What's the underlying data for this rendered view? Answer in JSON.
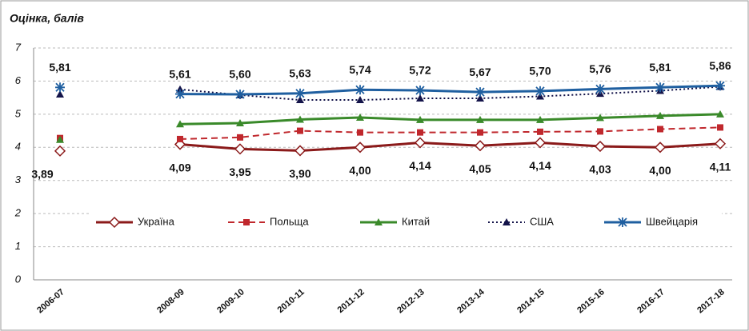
{
  "chart_data": {
    "type": "line",
    "title": "Оцінка, балів",
    "categories": [
      "2006-07",
      null,
      "2008-09",
      "2009-10",
      "2010-11",
      "2011-12",
      "2012-13",
      "2013-14",
      "2014-15",
      "2015-16",
      "2016-17",
      "2017-18"
    ],
    "ylim": [
      0,
      7
    ],
    "yticks": [
      0,
      1,
      2,
      3,
      4,
      5,
      6,
      7
    ],
    "grid": true,
    "series": [
      {
        "name": "Україна",
        "color": "#8b1a1a",
        "line_style": "solid",
        "marker": "diamond",
        "values": [
          3.89,
          null,
          4.09,
          3.95,
          3.9,
          4.0,
          4.14,
          4.05,
          4.14,
          4.03,
          4.0,
          4.11
        ],
        "value_labels": [
          "3,89",
          null,
          "4,09",
          "3,95",
          "3,90",
          "4,00",
          "4,14",
          "4,05",
          "4,14",
          "4,03",
          "4,00",
          "4,11"
        ],
        "label_position": "below"
      },
      {
        "name": "Польща",
        "color": "#c0282d",
        "line_style": "dashed",
        "marker": "square",
        "values": [
          4.28,
          null,
          4.25,
          4.3,
          4.5,
          4.45,
          4.45,
          4.45,
          4.47,
          4.48,
          4.55,
          4.6
        ]
      },
      {
        "name": "Китай",
        "color": "#3a8a2a",
        "line_style": "solid",
        "marker": "triangle",
        "values": [
          4.23,
          null,
          4.7,
          4.73,
          4.84,
          4.9,
          4.83,
          4.83,
          4.83,
          4.89,
          4.95,
          5.0
        ]
      },
      {
        "name": "США",
        "color": "#14144a",
        "line_style": "dotted",
        "marker": "triangle",
        "values": [
          5.6,
          null,
          5.75,
          5.58,
          5.43,
          5.43,
          5.48,
          5.48,
          5.54,
          5.62,
          5.71,
          5.83
        ]
      },
      {
        "name": "Швейцарія",
        "color": "#1f5fa0",
        "line_style": "solid",
        "marker": "asterisk",
        "values": [
          5.81,
          null,
          5.61,
          5.6,
          5.63,
          5.74,
          5.72,
          5.67,
          5.7,
          5.76,
          5.81,
          5.86
        ],
        "value_labels": [
          "5,81",
          null,
          "5,61",
          "5,60",
          "5,63",
          "5,74",
          "5,72",
          "5,67",
          "5,70",
          "5,76",
          "5,81",
          "5,86"
        ],
        "label_position": "above"
      }
    ]
  }
}
